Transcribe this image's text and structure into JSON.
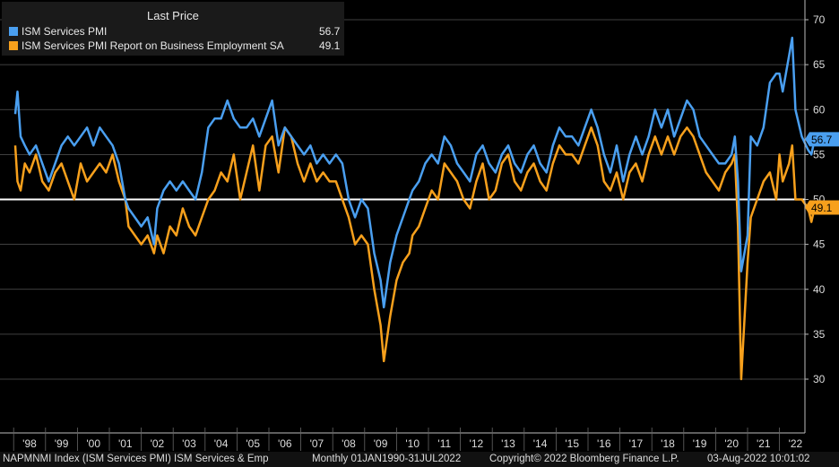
{
  "legend": {
    "header": "Last Price",
    "items": [
      {
        "label": "ISM Services PMI",
        "value": "56.7",
        "color": "#4a9ff0"
      },
      {
        "label": "ISM Services PMI Report on Business Employment SA",
        "value": "49.1",
        "color": "#f7a01c"
      }
    ]
  },
  "footer": {
    "ticker": "NAPMNMI Index (ISM Services PMI) ISM Services & Emp",
    "period": "Monthly 01JAN1990-31JUL2022",
    "copyright": "Copyright© 2022 Bloomberg Finance L.P.",
    "timestamp": "03-Aug-2022 10:01:02"
  },
  "chart_data": {
    "type": "line",
    "ylim": [
      25,
      72
    ],
    "y_ticks": [
      30,
      35,
      40,
      45,
      50,
      55,
      60,
      65,
      70
    ],
    "reference_line": 50,
    "grid": true,
    "legend_position": "top-left",
    "x_tick_labels": [
      "'98",
      "'99",
      "'00",
      "'01",
      "'02",
      "'03",
      "'04",
      "'05",
      "'06",
      "'07",
      "'08",
      "'09",
      "'10",
      "'11",
      "'12",
      "'13",
      "'14",
      "'15",
      "'16",
      "'17",
      "'18",
      "'19",
      "'20",
      "'21",
      "'22"
    ],
    "last_value_labels": [
      {
        "series": "ISM Services PMI",
        "text": "56.7"
      },
      {
        "series": "ISM Services PMI Report on Business Employment SA",
        "text": "49.1"
      }
    ],
    "series": [
      {
        "name": "ISM Services PMI",
        "color": "#4a9ff0",
        "points": [
          [
            1997.55,
            59.5
          ],
          [
            1997.62,
            62
          ],
          [
            1997.72,
            57
          ],
          [
            1997.85,
            56
          ],
          [
            1998.0,
            55
          ],
          [
            1998.2,
            56
          ],
          [
            1998.4,
            54
          ],
          [
            1998.6,
            52
          ],
          [
            1998.8,
            54
          ],
          [
            1999.0,
            56
          ],
          [
            1999.2,
            57
          ],
          [
            1999.4,
            56
          ],
          [
            1999.6,
            57
          ],
          [
            1999.8,
            58
          ],
          [
            2000.0,
            56
          ],
          [
            2000.2,
            58
          ],
          [
            2000.4,
            57
          ],
          [
            2000.6,
            56
          ],
          [
            2000.8,
            54
          ],
          [
            2001.0,
            50
          ],
          [
            2001.1,
            49
          ],
          [
            2001.3,
            48
          ],
          [
            2001.5,
            47
          ],
          [
            2001.7,
            48
          ],
          [
            2001.9,
            45
          ],
          [
            2002.0,
            49
          ],
          [
            2002.2,
            51
          ],
          [
            2002.4,
            52
          ],
          [
            2002.6,
            51
          ],
          [
            2002.8,
            52
          ],
          [
            2003.0,
            51
          ],
          [
            2003.2,
            50
          ],
          [
            2003.4,
            53
          ],
          [
            2003.6,
            58
          ],
          [
            2003.8,
            59
          ],
          [
            2004.0,
            59
          ],
          [
            2004.2,
            61
          ],
          [
            2004.4,
            59
          ],
          [
            2004.6,
            58
          ],
          [
            2004.8,
            58
          ],
          [
            2005.0,
            59
          ],
          [
            2005.2,
            57
          ],
          [
            2005.4,
            59
          ],
          [
            2005.6,
            61
          ],
          [
            2005.8,
            56
          ],
          [
            2006.0,
            58
          ],
          [
            2006.2,
            57
          ],
          [
            2006.4,
            56
          ],
          [
            2006.6,
            55
          ],
          [
            2006.8,
            56
          ],
          [
            2007.0,
            54
          ],
          [
            2007.2,
            55
          ],
          [
            2007.4,
            54
          ],
          [
            2007.6,
            55
          ],
          [
            2007.8,
            54
          ],
          [
            2008.0,
            50
          ],
          [
            2008.2,
            48
          ],
          [
            2008.4,
            50
          ],
          [
            2008.6,
            49
          ],
          [
            2008.8,
            44
          ],
          [
            2009.0,
            41
          ],
          [
            2009.1,
            38
          ],
          [
            2009.3,
            43
          ],
          [
            2009.5,
            46
          ],
          [
            2009.7,
            48
          ],
          [
            2009.9,
            50
          ],
          [
            2010.0,
            51
          ],
          [
            2010.2,
            52
          ],
          [
            2010.4,
            54
          ],
          [
            2010.6,
            55
          ],
          [
            2010.8,
            54
          ],
          [
            2011.0,
            57
          ],
          [
            2011.2,
            56
          ],
          [
            2011.4,
            54
          ],
          [
            2011.6,
            53
          ],
          [
            2011.8,
            52
          ],
          [
            2012.0,
            55
          ],
          [
            2012.2,
            56
          ],
          [
            2012.4,
            54
          ],
          [
            2012.6,
            53
          ],
          [
            2012.8,
            55
          ],
          [
            2013.0,
            56
          ],
          [
            2013.2,
            54
          ],
          [
            2013.4,
            53
          ],
          [
            2013.6,
            55
          ],
          [
            2013.8,
            56
          ],
          [
            2014.0,
            54
          ],
          [
            2014.2,
            53
          ],
          [
            2014.4,
            56
          ],
          [
            2014.6,
            58
          ],
          [
            2014.8,
            57
          ],
          [
            2015.0,
            57
          ],
          [
            2015.2,
            56
          ],
          [
            2015.4,
            58
          ],
          [
            2015.6,
            60
          ],
          [
            2015.8,
            58
          ],
          [
            2016.0,
            55
          ],
          [
            2016.2,
            53
          ],
          [
            2016.4,
            56
          ],
          [
            2016.6,
            52
          ],
          [
            2016.8,
            55
          ],
          [
            2017.0,
            57
          ],
          [
            2017.2,
            55
          ],
          [
            2017.4,
            57
          ],
          [
            2017.6,
            60
          ],
          [
            2017.8,
            58
          ],
          [
            2018.0,
            60
          ],
          [
            2018.2,
            57
          ],
          [
            2018.4,
            59
          ],
          [
            2018.6,
            61
          ],
          [
            2018.8,
            60
          ],
          [
            2019.0,
            57
          ],
          [
            2019.2,
            56
          ],
          [
            2019.4,
            55
          ],
          [
            2019.6,
            54
          ],
          [
            2019.8,
            54
          ],
          [
            2020.0,
            55
          ],
          [
            2020.1,
            57
          ],
          [
            2020.2,
            52
          ],
          [
            2020.3,
            42
          ],
          [
            2020.5,
            46
          ],
          [
            2020.6,
            57
          ],
          [
            2020.8,
            56
          ],
          [
            2021.0,
            58
          ],
          [
            2021.2,
            63
          ],
          [
            2021.4,
            64
          ],
          [
            2021.5,
            64
          ],
          [
            2021.6,
            62
          ],
          [
            2021.8,
            66
          ],
          [
            2021.9,
            68
          ],
          [
            2022.0,
            60
          ],
          [
            2022.2,
            57
          ],
          [
            2022.4,
            55.5
          ],
          [
            2022.5,
            55
          ],
          [
            2022.6,
            56.7
          ]
        ]
      },
      {
        "name": "ISM Services PMI Report on Business Employment SA",
        "color": "#f7a01c",
        "points": [
          [
            1997.55,
            56
          ],
          [
            1997.62,
            52
          ],
          [
            1997.72,
            51
          ],
          [
            1997.85,
            54
          ],
          [
            1998.0,
            53
          ],
          [
            1998.2,
            55
          ],
          [
            1998.4,
            52
          ],
          [
            1998.6,
            51
          ],
          [
            1998.8,
            53
          ],
          [
            1999.0,
            54
          ],
          [
            1999.2,
            52
          ],
          [
            1999.4,
            50
          ],
          [
            1999.6,
            54
          ],
          [
            1999.8,
            52
          ],
          [
            2000.0,
            53
          ],
          [
            2000.2,
            54
          ],
          [
            2000.4,
            53
          ],
          [
            2000.6,
            55
          ],
          [
            2000.8,
            52
          ],
          [
            2001.0,
            50
          ],
          [
            2001.1,
            47
          ],
          [
            2001.3,
            46
          ],
          [
            2001.5,
            45
          ],
          [
            2001.7,
            46
          ],
          [
            2001.9,
            44
          ],
          [
            2002.0,
            46
          ],
          [
            2002.2,
            44
          ],
          [
            2002.4,
            47
          ],
          [
            2002.6,
            46
          ],
          [
            2002.8,
            49
          ],
          [
            2003.0,
            47
          ],
          [
            2003.2,
            46
          ],
          [
            2003.4,
            48
          ],
          [
            2003.6,
            50
          ],
          [
            2003.8,
            51
          ],
          [
            2004.0,
            53
          ],
          [
            2004.2,
            52
          ],
          [
            2004.4,
            55
          ],
          [
            2004.6,
            50
          ],
          [
            2004.8,
            53
          ],
          [
            2005.0,
            56
          ],
          [
            2005.2,
            51
          ],
          [
            2005.4,
            56
          ],
          [
            2005.6,
            57
          ],
          [
            2005.8,
            53
          ],
          [
            2006.0,
            58
          ],
          [
            2006.2,
            57
          ],
          [
            2006.4,
            54
          ],
          [
            2006.6,
            52
          ],
          [
            2006.8,
            54
          ],
          [
            2007.0,
            52
          ],
          [
            2007.2,
            53
          ],
          [
            2007.4,
            52
          ],
          [
            2007.6,
            52
          ],
          [
            2007.8,
            50
          ],
          [
            2008.0,
            48
          ],
          [
            2008.2,
            45
          ],
          [
            2008.4,
            46
          ],
          [
            2008.6,
            45
          ],
          [
            2008.8,
            40
          ],
          [
            2009.0,
            36
          ],
          [
            2009.1,
            32
          ],
          [
            2009.3,
            37
          ],
          [
            2009.5,
            41
          ],
          [
            2009.7,
            43
          ],
          [
            2009.9,
            44
          ],
          [
            2010.0,
            46
          ],
          [
            2010.2,
            47
          ],
          [
            2010.4,
            49
          ],
          [
            2010.6,
            51
          ],
          [
            2010.8,
            50
          ],
          [
            2011.0,
            54
          ],
          [
            2011.2,
            53
          ],
          [
            2011.4,
            52
          ],
          [
            2011.6,
            50
          ],
          [
            2011.8,
            49
          ],
          [
            2012.0,
            52
          ],
          [
            2012.2,
            54
          ],
          [
            2012.4,
            50
          ],
          [
            2012.6,
            51
          ],
          [
            2012.8,
            54
          ],
          [
            2013.0,
            55
          ],
          [
            2013.2,
            52
          ],
          [
            2013.4,
            51
          ],
          [
            2013.6,
            53
          ],
          [
            2013.8,
            54
          ],
          [
            2014.0,
            52
          ],
          [
            2014.2,
            51
          ],
          [
            2014.4,
            54
          ],
          [
            2014.6,
            56
          ],
          [
            2014.8,
            55
          ],
          [
            2015.0,
            55
          ],
          [
            2015.2,
            54
          ],
          [
            2015.4,
            56
          ],
          [
            2015.6,
            58
          ],
          [
            2015.8,
            56
          ],
          [
            2016.0,
            52
          ],
          [
            2016.2,
            51
          ],
          [
            2016.4,
            53
          ],
          [
            2016.6,
            50
          ],
          [
            2016.8,
            53
          ],
          [
            2017.0,
            54
          ],
          [
            2017.2,
            52
          ],
          [
            2017.4,
            55
          ],
          [
            2017.6,
            57
          ],
          [
            2017.8,
            55
          ],
          [
            2018.0,
            57
          ],
          [
            2018.2,
            55
          ],
          [
            2018.4,
            57
          ],
          [
            2018.6,
            58
          ],
          [
            2018.8,
            57
          ],
          [
            2019.0,
            55
          ],
          [
            2019.2,
            53
          ],
          [
            2019.4,
            52
          ],
          [
            2019.6,
            51
          ],
          [
            2019.8,
            53
          ],
          [
            2020.0,
            54
          ],
          [
            2020.1,
            55
          ],
          [
            2020.2,
            47
          ],
          [
            2020.3,
            30
          ],
          [
            2020.5,
            43
          ],
          [
            2020.6,
            48
          ],
          [
            2020.8,
            50
          ],
          [
            2021.0,
            52
          ],
          [
            2021.2,
            53
          ],
          [
            2021.4,
            50
          ],
          [
            2021.5,
            55
          ],
          [
            2021.6,
            52
          ],
          [
            2021.8,
            54
          ],
          [
            2021.9,
            56
          ],
          [
            2022.0,
            50
          ],
          [
            2022.2,
            50
          ],
          [
            2022.4,
            49
          ],
          [
            2022.5,
            47.5
          ],
          [
            2022.6,
            49.1
          ]
        ]
      }
    ]
  }
}
